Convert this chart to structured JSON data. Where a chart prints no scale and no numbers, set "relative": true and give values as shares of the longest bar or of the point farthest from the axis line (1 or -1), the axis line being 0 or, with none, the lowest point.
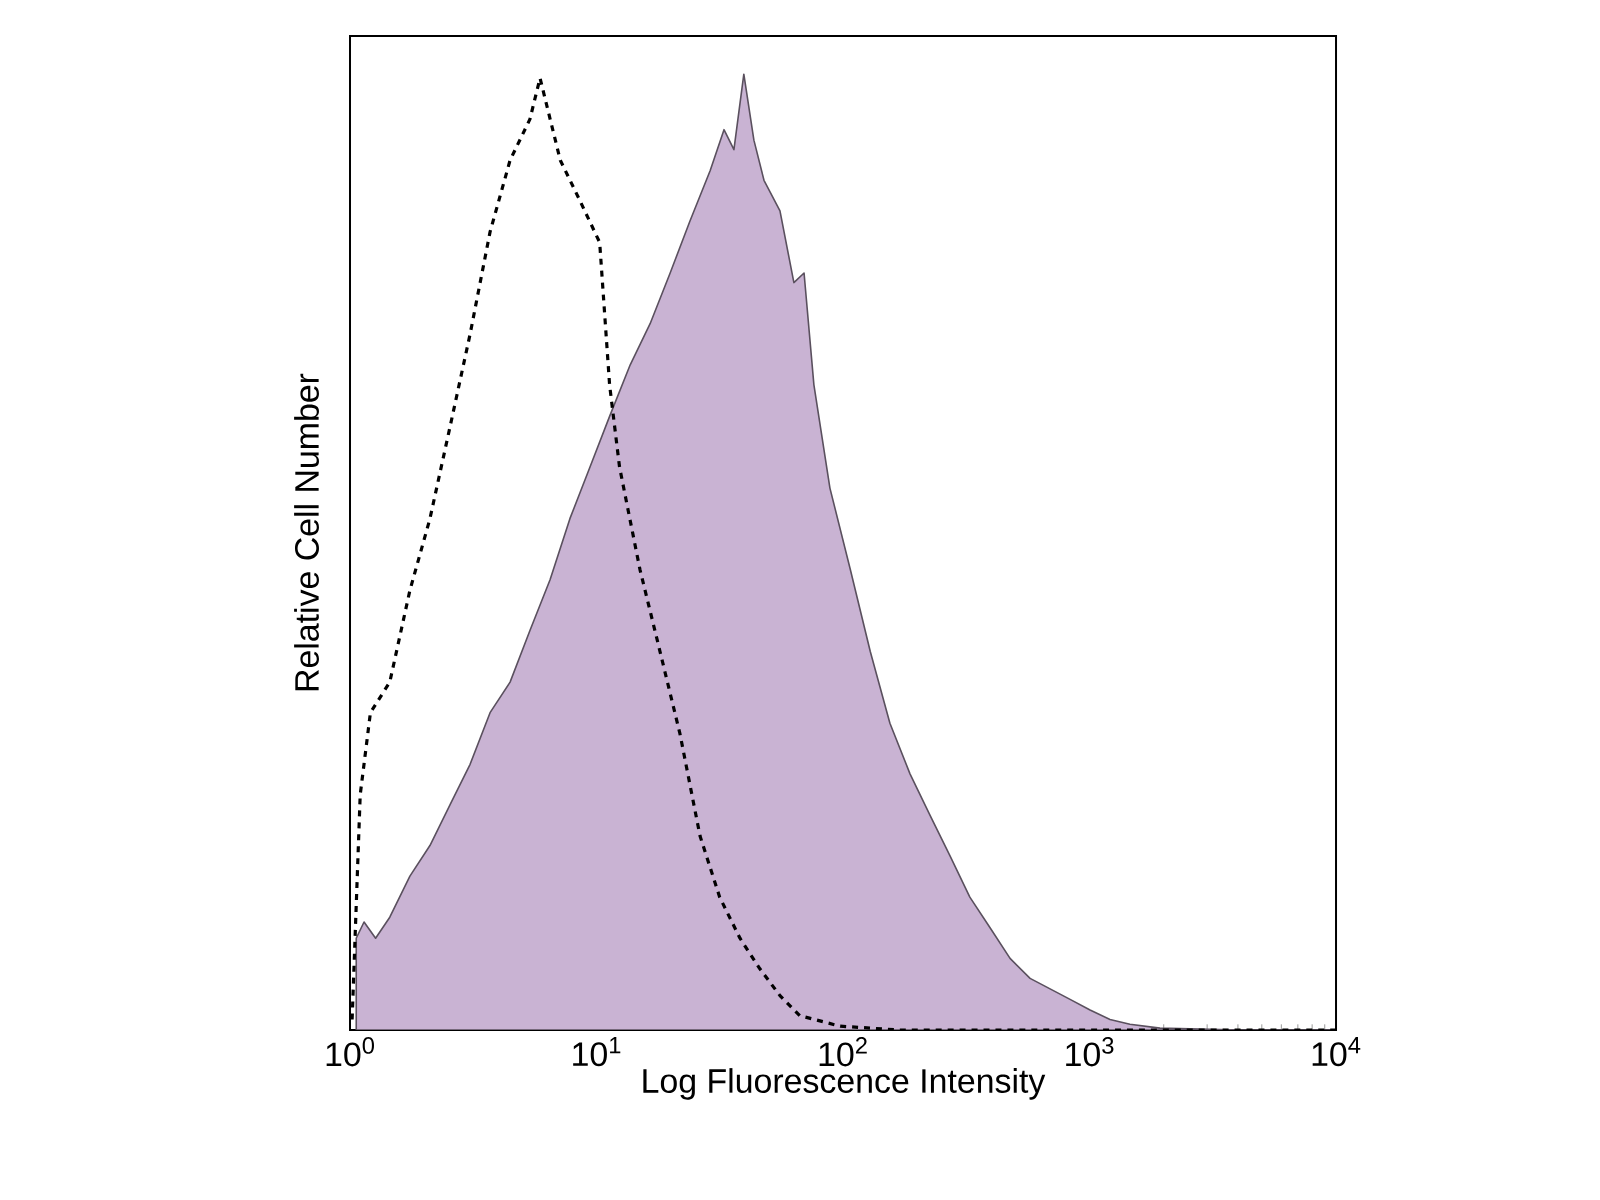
{
  "chart_data": {
    "type": "area",
    "relative": true,
    "log": "x",
    "xlabel": "Log Fluorescence Intensity",
    "ylabel": "Relative Cell Number",
    "xlim": [
      1,
      10000
    ],
    "xticks": [
      {
        "value": 1,
        "label": "10$^{0}$"
      },
      {
        "value": 10,
        "label": "10$^{1}$"
      },
      {
        "value": 100,
        "label": "10$^{2}$"
      },
      {
        "value": 1000,
        "label": "10$^{3}$"
      },
      {
        "value": 10000,
        "label": "10$^{4}$"
      }
    ],
    "tick_labels": "x",
    "series": [
      {
        "color": "#c9b3d3",
        "x": [
          1.06,
          1.14,
          1.27,
          1.45,
          1.75,
          2.11,
          2.55,
          3.07,
          3.7,
          4.46,
          5.37,
          6.48,
          7.8,
          9.41,
          11.3,
          13.7,
          16.5,
          19.9,
          23.9,
          28.9,
          32.9,
          36.1,
          39.6,
          43.5,
          47.8,
          55.5,
          63.2,
          69.5,
          76.2,
          88.5,
          107,
          129,
          155,
          187,
          225,
          272,
          327,
          395,
          476,
          574,
          692,
          834,
          1005,
          1211,
          1459,
          1932,
          4080,
          10000
        ],
        "values": [
          0.096,
          0.113,
          0.096,
          0.118,
          0.161,
          0.193,
          0.236,
          0.278,
          0.332,
          0.364,
          0.418,
          0.471,
          0.535,
          0.589,
          0.642,
          0.696,
          0.739,
          0.792,
          0.846,
          0.899,
          0.942,
          0.921,
          1,
          0.931,
          0.889,
          0.857,
          0.782,
          0.792,
          0.675,
          0.567,
          0.482,
          0.396,
          0.321,
          0.268,
          0.225,
          0.182,
          0.139,
          0.107,
          0.075,
          0.054,
          0.043,
          0.032,
          0.021,
          0.011,
          0.006,
          0.002,
          0,
          0
        ]
      },
      {
        "type": "line",
        "color": "#000000",
        "line_style": "dashed",
        "x": [
          1.02,
          1.1,
          1.21,
          1.45,
          1.75,
          2.11,
          2.55,
          3.07,
          3.7,
          4.46,
          5.37,
          5.9,
          7.13,
          8.59,
          10.3,
          11.3,
          12.4,
          15,
          18.1,
          21.8,
          26.3,
          31.6,
          38.2,
          46,
          55.5,
          66.8,
          97.4,
          170,
          10000
        ],
        "values": [
          0.011,
          0.246,
          0.332,
          0.364,
          0.46,
          0.535,
          0.632,
          0.728,
          0.835,
          0.91,
          0.953,
          0.996,
          0.91,
          0.867,
          0.824,
          0.675,
          0.589,
          0.482,
          0.396,
          0.31,
          0.203,
          0.139,
          0.096,
          0.064,
          0.036,
          0.015,
          0.004,
          0,
          0
        ]
      }
    ]
  }
}
